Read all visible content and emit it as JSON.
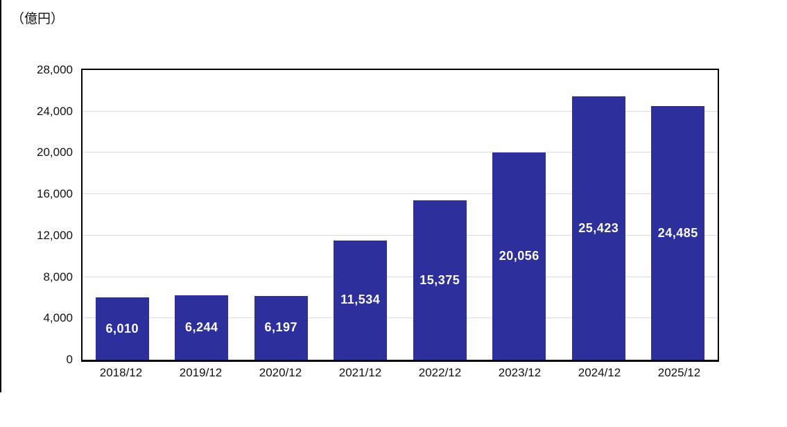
{
  "chart_data": {
    "type": "bar",
    "title": "",
    "unit_label": "（億円）",
    "categories": [
      "2018/12",
      "2019/12",
      "2020/12",
      "2021/12",
      "2022/12",
      "2023/12",
      "2024/12",
      "2025/12"
    ],
    "values": [
      6010,
      6244,
      6197,
      11534,
      15375,
      20056,
      25423,
      24485
    ],
    "value_labels": [
      "6,010",
      "6,244",
      "6,197",
      "11,534",
      "15,375",
      "20,056",
      "25,423",
      "24,485"
    ],
    "ylim": [
      0,
      28000
    ],
    "ytick_interval": 4000,
    "ytick_values": [
      0,
      4000,
      8000,
      12000,
      16000,
      20000,
      24000,
      28000
    ],
    "ytick_labels": [
      "0",
      "4,000",
      "8,000",
      "12,000",
      "16,000",
      "20,000",
      "24,000",
      "28,000"
    ],
    "xlabel": "",
    "ylabel": "",
    "legend": "none",
    "grid": "horizontal",
    "bar_color": "#2D2F9D",
    "bar_label_color": "#FFFFFF",
    "gridline_color": "#DCDCDC",
    "axis_border_color": "#000000"
  }
}
